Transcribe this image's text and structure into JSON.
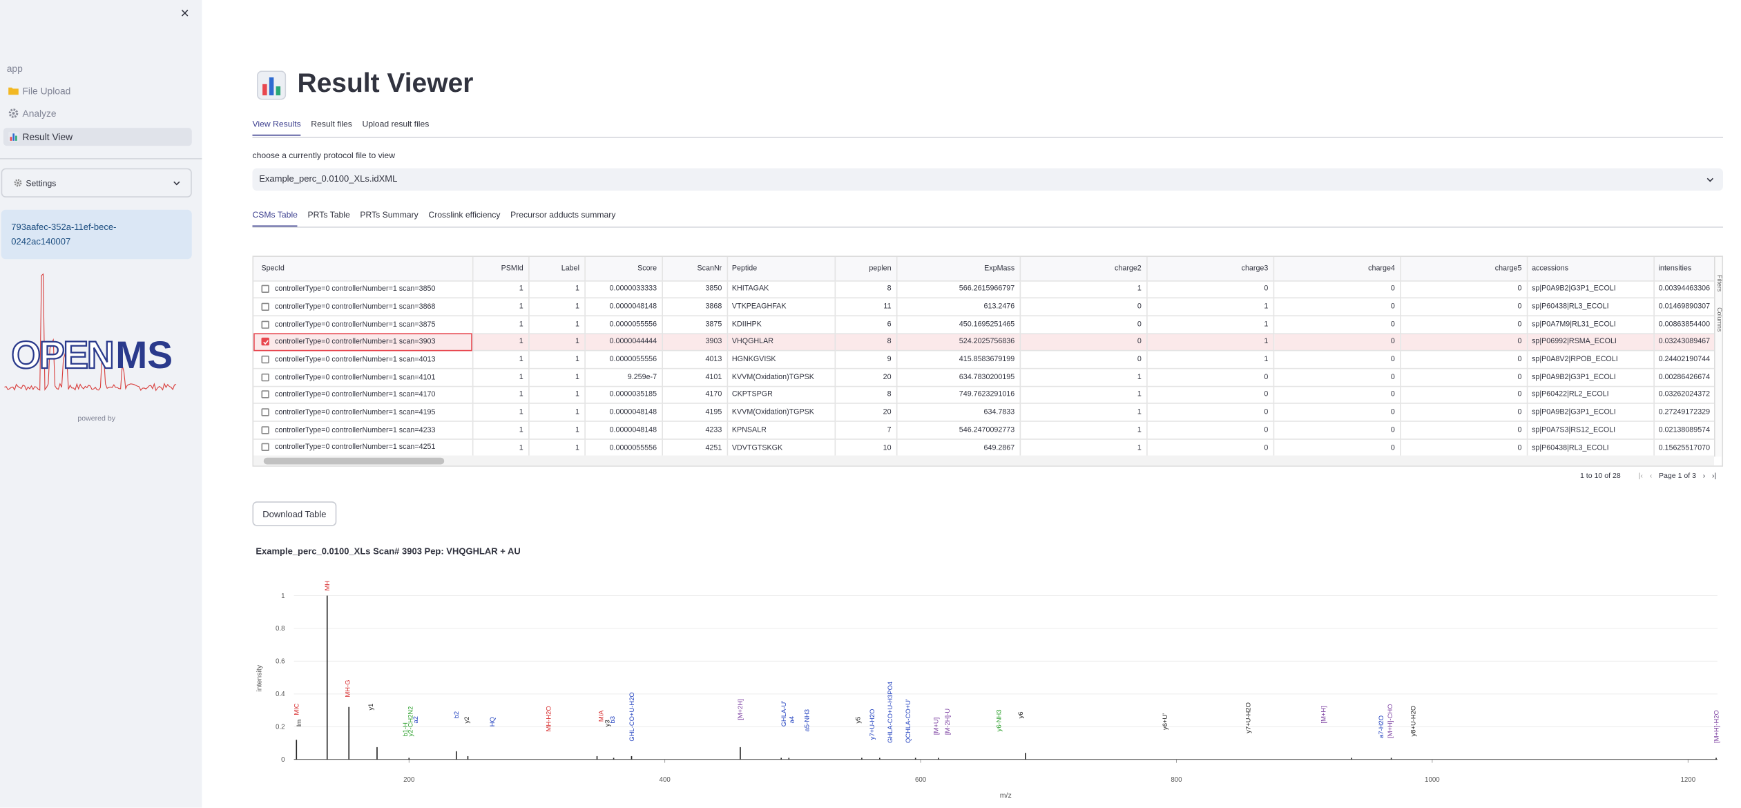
{
  "sidebar": {
    "app_label": "app",
    "nav": [
      "File Upload",
      "Analyze",
      "Result View"
    ],
    "active_nav": 2,
    "settings": "Settings",
    "workspace_id": "793aafec-352a-11ef-bece-0242ac140007",
    "logo": [
      "OPEN",
      "MS"
    ],
    "powered_by": "powered by"
  },
  "header": {
    "title": "Result Viewer"
  },
  "tabs": {
    "items": [
      "View Results",
      "Result files",
      "Upload result files"
    ],
    "active": 0
  },
  "file_select": {
    "label": "choose a currently protocol file to view",
    "value": "Example_perc_0.0100_XLs.idXML"
  },
  "subtabs": {
    "items": [
      "CSMs Table",
      "PRTs Table",
      "PRTs Summary",
      "Crosslink efficiency",
      "Precursor adducts summary"
    ],
    "active": 0
  },
  "table": {
    "columns": [
      "SpecId",
      "PSMId",
      "Label",
      "Score",
      "ScanNr",
      "Peptide",
      "peplen",
      "ExpMass",
      "charge2",
      "charge3",
      "charge4",
      "charge5",
      "accessions",
      "intensities"
    ],
    "rows": [
      [
        "controllerType=0 controllerNumber=1 scan=3850",
        "1",
        "1",
        "0.0000033333",
        "3850",
        "KHITAGAK",
        "8",
        "566.2615966797",
        "1",
        "0",
        "0",
        "0",
        "sp|P0A9B2|G3P1_ECOLI",
        "0.00394463306"
      ],
      [
        "controllerType=0 controllerNumber=1 scan=3868",
        "1",
        "1",
        "0.0000048148",
        "3868",
        "VTKPEAGHFAK",
        "11",
        "613.2476",
        "0",
        "1",
        "0",
        "0",
        "sp|P60438|RL3_ECOLI",
        "0.01469890307"
      ],
      [
        "controllerType=0 controllerNumber=1 scan=3875",
        "1",
        "1",
        "0.0000055556",
        "3875",
        "KDIIHPK",
        "6",
        "450.1695251465",
        "0",
        "1",
        "0",
        "0",
        "sp|P0A7M9|RL31_ECOLI",
        "0.00863854400"
      ],
      [
        "controllerType=0 controllerNumber=1 scan=3903",
        "1",
        "1",
        "0.0000044444",
        "3903",
        "VHQGHLAR",
        "8",
        "524.2025756836",
        "0",
        "1",
        "0",
        "0",
        "sp|P06992|RSMA_ECOLI",
        "0.03243089467"
      ],
      [
        "controllerType=0 controllerNumber=1 scan=4013",
        "1",
        "1",
        "0.0000055556",
        "4013",
        "HGNKGVISK",
        "9",
        "415.8583679199",
        "0",
        "1",
        "0",
        "0",
        "sp|P0A8V2|RPOB_ECOLI",
        "0.24402190744"
      ],
      [
        "controllerType=0 controllerNumber=1 scan=4101",
        "1",
        "1",
        "9.259e-7",
        "4101",
        "KVVM(Oxidation)TGPSK",
        "20",
        "634.7830200195",
        "1",
        "0",
        "0",
        "0",
        "sp|P0A9B2|G3P1_ECOLI",
        "0.00286426674"
      ],
      [
        "controllerType=0 controllerNumber=1 scan=4170",
        "1",
        "1",
        "0.0000035185",
        "4170",
        "CKPTSPGR",
        "8",
        "749.7623291016",
        "1",
        "0",
        "0",
        "0",
        "sp|P60422|RL2_ECOLI",
        "0.03262024372"
      ],
      [
        "controllerType=0 controllerNumber=1 scan=4195",
        "1",
        "1",
        "0.0000048148",
        "4195",
        "KVVM(Oxidation)TGPSK",
        "20",
        "634.7833",
        "1",
        "0",
        "0",
        "0",
        "sp|P0A9B2|G3P1_ECOLI",
        "0.27249172329"
      ],
      [
        "controllerType=0 controllerNumber=1 scan=4233",
        "1",
        "1",
        "0.0000048148",
        "4233",
        "KPNSALR",
        "7",
        "546.2470092773",
        "1",
        "0",
        "0",
        "0",
        "sp|P0A7S3|RS12_ECOLI",
        "0.02138089574"
      ],
      [
        "controllerType=0 controllerNumber=1 scan=4251",
        "1",
        "1",
        "0.0000055556",
        "4251",
        "VDVTGTSKGK",
        "10",
        "649.2867",
        "1",
        "0",
        "0",
        "0",
        "sp|P60438|RL3_ECOLI",
        "0.15625517070"
      ]
    ],
    "selected_row": 3,
    "side_panel": [
      "Filters",
      "Columns"
    ],
    "pagination": {
      "range": "1 to 10 of 28",
      "page": "Page 1 of 3"
    }
  },
  "download_button": "Download Table",
  "chart_data": {
    "type": "stem",
    "title": "Example_perc_0.0100_XLs Scan# 3903 Pep: VHQGHLAR + AU",
    "x_label": "m/z",
    "y_label": "intensity",
    "color": "#222222",
    "x": [
      112,
      136,
      153,
      175,
      200,
      237,
      246,
      347,
      360,
      374,
      459,
      491,
      497,
      554,
      568,
      596,
      614,
      682,
      937,
      968,
      1222
    ],
    "values": [
      0.12,
      1,
      0.32,
      0.075,
      0.01,
      0.05,
      0.02,
      0.02,
      0.01,
      0.02,
      0.075,
      0.01,
      0.01,
      0.01,
      0.01,
      0.01,
      0.01,
      0.04,
      0.01,
      0.01,
      0.01
    ],
    "xlim": [
      110,
      1223
    ],
    "ylim": [
      0,
      1.1
    ],
    "xticks": [
      200,
      400,
      600,
      800,
      1000,
      1200
    ],
    "yticks": [
      0,
      0.2,
      0.4,
      0.6,
      0.8,
      1
    ],
    "grid": true,
    "annotations": [
      {
        "x": 112,
        "y": 0.27,
        "text": "MIC",
        "color": "#d62728"
      },
      {
        "x": 114,
        "y": 0.2,
        "text": "Im",
        "color": "#222222"
      },
      {
        "x": 136,
        "y": 1.03,
        "text": "MH",
        "color": "#d62728"
      },
      {
        "x": 152,
        "y": 0.38,
        "text": "MH-G",
        "color": "#d62728"
      },
      {
        "x": 170,
        "y": 0.3,
        "text": "y1",
        "color": "#222222"
      },
      {
        "x": 197,
        "y": 0.14,
        "text": "b1-H",
        "color": "#2ca02c"
      },
      {
        "x": 201,
        "y": 0.14,
        "text": "y2-CH2N2",
        "color": "#2ca02c"
      },
      {
        "x": 205,
        "y": 0.22,
        "text": "a2",
        "color": "#1f3fbf"
      },
      {
        "x": 237,
        "y": 0.25,
        "text": "b2",
        "color": "#1f3fbf"
      },
      {
        "x": 245,
        "y": 0.22,
        "text": "y2",
        "color": "#222222"
      },
      {
        "x": 265,
        "y": 0.2,
        "text": "HQ",
        "color": "#1f3fbf"
      },
      {
        "x": 309,
        "y": 0.17,
        "text": "MH-H2O",
        "color": "#d62728"
      },
      {
        "x": 350,
        "y": 0.23,
        "text": "M/A",
        "color": "#d62728"
      },
      {
        "x": 355,
        "y": 0.2,
        "text": "y3",
        "color": "#222222"
      },
      {
        "x": 359,
        "y": 0.22,
        "text": "b3",
        "color": "#1f3fbf"
      },
      {
        "x": 374,
        "y": 0.11,
        "text": "GHL-CO+U-H2O",
        "color": "#1f3fbf"
      },
      {
        "x": 459,
        "y": 0.24,
        "text": "[M+2H]",
        "color": "#7b3fa0"
      },
      {
        "x": 493,
        "y": 0.2,
        "text": "GHLA-U'",
        "color": "#1f3fbf"
      },
      {
        "x": 499,
        "y": 0.22,
        "text": "a4",
        "color": "#1f3fbf"
      },
      {
        "x": 511,
        "y": 0.17,
        "text": "a5-NH3",
        "color": "#1f3fbf"
      },
      {
        "x": 551,
        "y": 0.22,
        "text": "y5",
        "color": "#222222"
      },
      {
        "x": 562,
        "y": 0.12,
        "text": "y7+U-H2O",
        "color": "#1f3fbf"
      },
      {
        "x": 576,
        "y": 0.1,
        "text": "GHLA-CO+U-H3PO4",
        "color": "#1f3fbf"
      },
      {
        "x": 590,
        "y": 0.1,
        "text": "QCHLA-CO+U'",
        "color": "#1f3fbf"
      },
      {
        "x": 612,
        "y": 0.15,
        "text": "[M+U]",
        "color": "#7b3fa0"
      },
      {
        "x": 621,
        "y": 0.15,
        "text": "[M-2H]-U",
        "color": "#7b3fa0"
      },
      {
        "x": 661,
        "y": 0.17,
        "text": "y6-NH3",
        "color": "#2ca02c"
      },
      {
        "x": 678,
        "y": 0.25,
        "text": "y6",
        "color": "#222222"
      },
      {
        "x": 791,
        "y": 0.18,
        "text": "y6+U'",
        "color": "#222222"
      },
      {
        "x": 856,
        "y": 0.16,
        "text": "y7+U-H2O",
        "color": "#222222"
      },
      {
        "x": 915,
        "y": 0.22,
        "text": "[M+H]",
        "color": "#7b3fa0"
      },
      {
        "x": 960,
        "y": 0.13,
        "text": "a7-H2O",
        "color": "#1f3fbf"
      },
      {
        "x": 967,
        "y": 0.13,
        "text": "[M+H]-CHO",
        "color": "#7b3fa0"
      },
      {
        "x": 985,
        "y": 0.14,
        "text": "y8+U-H2O",
        "color": "#222222"
      },
      {
        "x": 1222,
        "y": 0.1,
        "text": "[M+H]-H2O",
        "color": "#7b3fa0"
      }
    ]
  }
}
